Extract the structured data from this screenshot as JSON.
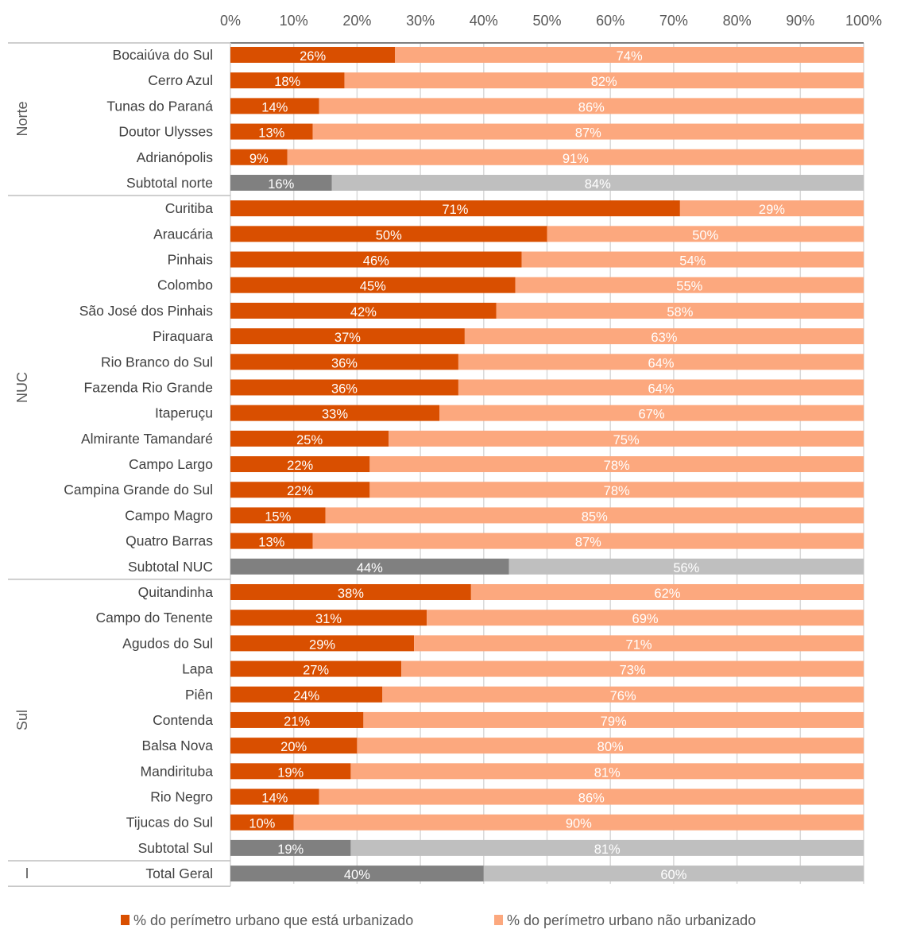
{
  "chart_data": {
    "type": "bar",
    "orientation": "horizontal",
    "stacked": "100%",
    "title": "",
    "xlabel": "",
    "ylabel": "",
    "xlim": [
      0,
      100
    ],
    "x_ticks": [
      "0%",
      "10%",
      "20%",
      "30%",
      "40%",
      "50%",
      "60%",
      "70%",
      "80%",
      "90%",
      "100%"
    ],
    "x_axis_position": "top",
    "grid": true,
    "legend_position": "bottom",
    "legend": [
      {
        "label": "% do perímetro urbano que está urbanizado",
        "color": "#d94f00"
      },
      {
        "label": "% do perímetro urbano não urbanizado",
        "color": "#fca87e"
      }
    ],
    "colors": {
      "urbanized": "#d94f00",
      "not_urbanized": "#fca87e",
      "subtotal_urbanized": "#808080",
      "subtotal_not_urbanized": "#bfbfbf",
      "label_text": "#ffffff"
    },
    "groups": [
      {
        "name": "Norte",
        "rows": [
          {
            "label": "Bocaiúva do Sul",
            "urbanized": 26,
            "not_urbanized": 74
          },
          {
            "label": "Cerro Azul",
            "urbanized": 18,
            "not_urbanized": 82
          },
          {
            "label": "Tunas do Paraná",
            "urbanized": 14,
            "not_urbanized": 86
          },
          {
            "label": "Doutor Ulysses",
            "urbanized": 13,
            "not_urbanized": 87
          },
          {
            "label": "Adrianópolis",
            "urbanized": 9,
            "not_urbanized": 91
          },
          {
            "label": "Subtotal norte",
            "urbanized": 16,
            "not_urbanized": 84,
            "subtotal": true
          }
        ]
      },
      {
        "name": "NUC",
        "rows": [
          {
            "label": "Curitiba",
            "urbanized": 71,
            "not_urbanized": 29
          },
          {
            "label": "Araucária",
            "urbanized": 50,
            "not_urbanized": 50
          },
          {
            "label": "Pinhais",
            "urbanized": 46,
            "not_urbanized": 54
          },
          {
            "label": "Colombo",
            "urbanized": 45,
            "not_urbanized": 55
          },
          {
            "label": "São José dos Pinhais",
            "urbanized": 42,
            "not_urbanized": 58
          },
          {
            "label": "Piraquara",
            "urbanized": 37,
            "not_urbanized": 63
          },
          {
            "label": "Rio Branco do Sul",
            "urbanized": 36,
            "not_urbanized": 64
          },
          {
            "label": "Fazenda Rio Grande",
            "urbanized": 36,
            "not_urbanized": 64
          },
          {
            "label": "Itaperuçu",
            "urbanized": 33,
            "not_urbanized": 67
          },
          {
            "label": "Almirante Tamandaré",
            "urbanized": 25,
            "not_urbanized": 75
          },
          {
            "label": "Campo Largo",
            "urbanized": 22,
            "not_urbanized": 78
          },
          {
            "label": "Campina Grande do Sul",
            "urbanized": 22,
            "not_urbanized": 78
          },
          {
            "label": "Campo Magro",
            "urbanized": 15,
            "not_urbanized": 85
          },
          {
            "label": "Quatro Barras",
            "urbanized": 13,
            "not_urbanized": 87
          },
          {
            "label": "Subtotal NUC",
            "urbanized": 44,
            "not_urbanized": 56,
            "subtotal": true
          }
        ]
      },
      {
        "name": "Sul",
        "rows": [
          {
            "label": "Quitandinha",
            "urbanized": 38,
            "not_urbanized": 62
          },
          {
            "label": "Campo do Tenente",
            "urbanized": 31,
            "not_urbanized": 69
          },
          {
            "label": "Agudos do Sul",
            "urbanized": 29,
            "not_urbanized": 71
          },
          {
            "label": "Lapa",
            "urbanized": 27,
            "not_urbanized": 73
          },
          {
            "label": "Piên",
            "urbanized": 24,
            "not_urbanized": 76
          },
          {
            "label": "Contenda",
            "urbanized": 21,
            "not_urbanized": 79
          },
          {
            "label": "Balsa Nova",
            "urbanized": 20,
            "not_urbanized": 80
          },
          {
            "label": "Mandirituba",
            "urbanized": 19,
            "not_urbanized": 81
          },
          {
            "label": "Rio Negro",
            "urbanized": 14,
            "not_urbanized": 86
          },
          {
            "label": "Tijucas do Sul",
            "urbanized": 10,
            "not_urbanized": 90
          },
          {
            "label": "Subtotal Sul",
            "urbanized": 19,
            "not_urbanized": 81,
            "subtotal": true
          }
        ]
      },
      {
        "name": "I",
        "rows": [
          {
            "label": "Total Geral",
            "urbanized": 40,
            "not_urbanized": 60,
            "subtotal": true
          }
        ]
      }
    ]
  }
}
